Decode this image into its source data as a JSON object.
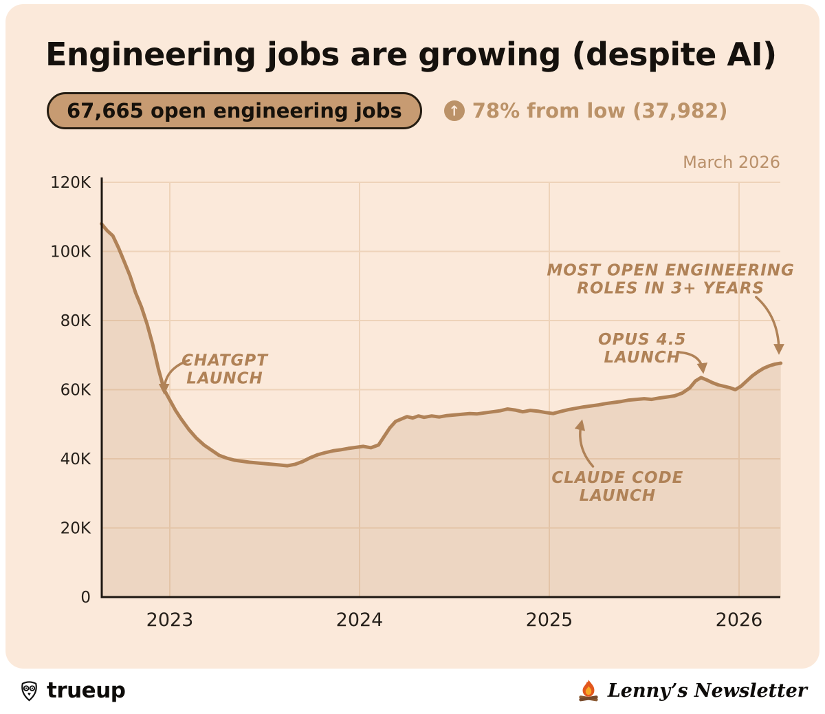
{
  "header": {
    "title": "Engineering jobs are growing (despite AI)",
    "badge": "67,665 open engineering jobs",
    "stat": "78% from low (37,982)"
  },
  "icons": {
    "up_arrow": "↑"
  },
  "footer": {
    "left_brand": "trueup",
    "right_brand": "Lenny’s Newsletter"
  },
  "colors": {
    "card_bg": "#fbe9da",
    "title_text": "#15110d",
    "pill_bg": "#c79b72",
    "pill_border": "#251d12",
    "stat_text": "#bb9268",
    "line": "#b08257",
    "area_fill": "rgba(176,129,86,0.18)",
    "grid": "#eed3b9",
    "axis": "#1d1711",
    "tick_text": "#26201a",
    "annotation": "#b08257",
    "muted_label": "#b9906a"
  },
  "chart_data": {
    "type": "area",
    "title": "Engineering jobs are growing (despite AI)",
    "series_name": "Open engineering jobs",
    "unit": "thousands of jobs",
    "latest_value": 67665,
    "low_value": 37982,
    "end_label": "March 2026",
    "xlim": [
      2022.64,
      2026.25
    ],
    "ylim": [
      0,
      120
    ],
    "y_ticks": [
      0,
      20,
      40,
      60,
      80,
      100,
      120
    ],
    "y_tick_labels": [
      "0",
      "20K",
      "40K",
      "60K",
      "80K",
      "100K",
      "120K"
    ],
    "x_ticks": [
      2023,
      2024,
      2025,
      2026
    ],
    "x_tick_labels": [
      "2023",
      "2024",
      "2025",
      "2026"
    ],
    "x_years": [
      2022.64,
      2022.67,
      2022.7,
      2022.73,
      2022.76,
      2022.79,
      2022.82,
      2022.85,
      2022.88,
      2022.91,
      2022.94,
      2022.97,
      2023.0,
      2023.03,
      2023.06,
      2023.1,
      2023.14,
      2023.18,
      2023.22,
      2023.26,
      2023.3,
      2023.34,
      2023.38,
      2023.42,
      2023.46,
      2023.5,
      2023.54,
      2023.58,
      2023.62,
      2023.66,
      2023.7,
      2023.74,
      2023.78,
      2023.82,
      2023.86,
      2023.9,
      2023.94,
      2023.98,
      2024.02,
      2024.06,
      2024.1,
      2024.13,
      2024.16,
      2024.19,
      2024.22,
      2024.25,
      2024.28,
      2024.31,
      2024.34,
      2024.38,
      2024.42,
      2024.46,
      2024.5,
      2024.54,
      2024.58,
      2024.62,
      2024.66,
      2024.7,
      2024.74,
      2024.78,
      2024.82,
      2024.86,
      2024.9,
      2024.94,
      2024.98,
      2025.02,
      2025.06,
      2025.1,
      2025.14,
      2025.18,
      2025.22,
      2025.26,
      2025.3,
      2025.34,
      2025.38,
      2025.42,
      2025.46,
      2025.5,
      2025.54,
      2025.58,
      2025.62,
      2025.66,
      2025.7,
      2025.74,
      2025.77,
      2025.8,
      2025.83,
      2025.86,
      2025.89,
      2025.92,
      2025.95,
      2025.98,
      2026.01,
      2026.04,
      2026.07,
      2026.1,
      2026.13,
      2026.16,
      2026.19,
      2026.22
    ],
    "y_thousands": [
      108,
      106,
      104.5,
      101,
      97,
      93,
      88,
      84,
      79,
      73,
      66,
      60,
      57,
      54,
      51.5,
      48.5,
      46,
      44,
      42.5,
      41,
      40.2,
      39.6,
      39.3,
      39.0,
      38.8,
      38.6,
      38.4,
      38.2,
      37.982,
      38.4,
      39.2,
      40.3,
      41.2,
      41.8,
      42.3,
      42.6,
      43.0,
      43.3,
      43.6,
      43.2,
      44.0,
      46.5,
      49.0,
      50.8,
      51.5,
      52.2,
      51.8,
      52.4,
      52.0,
      52.4,
      52.1,
      52.5,
      52.7,
      52.9,
      53.1,
      53.0,
      53.3,
      53.6,
      53.9,
      54.4,
      54.1,
      53.6,
      54.0,
      53.8,
      53.4,
      53.1,
      53.7,
      54.2,
      54.6,
      55.0,
      55.3,
      55.6,
      56.0,
      56.3,
      56.6,
      57.0,
      57.2,
      57.4,
      57.2,
      57.6,
      57.9,
      58.2,
      59.0,
      60.5,
      62.5,
      63.5,
      62.8,
      62.0,
      61.4,
      61.0,
      60.6,
      60.0,
      61.0,
      62.5,
      64.0,
      65.2,
      66.2,
      66.9,
      67.4,
      67.665
    ],
    "annotations": [
      {
        "text": "CHATGPT\nLAUNCH",
        "x": 2023.29,
        "y": 66,
        "arrow": {
          "from": [
            2023.1,
            68.5
          ],
          "ctrl": [
            2022.97,
            66.0
          ],
          "tip": [
            2022.97,
            59.5
          ]
        }
      },
      {
        "text": "CLAUDE CODE\nLAUNCH",
        "x": 2025.36,
        "y": 32,
        "arrow": {
          "from": [
            2025.23,
            37.8
          ],
          "ctrl": [
            2025.14,
            43.4
          ],
          "tip": [
            2025.17,
            50.5
          ]
        }
      },
      {
        "text": "OPUS 4.5\nLAUNCH",
        "x": 2025.49,
        "y": 72,
        "arrow": {
          "from": [
            2025.69,
            70.8
          ],
          "ctrl": [
            2025.8,
            70.2
          ],
          "tip": [
            2025.81,
            65.5
          ]
        }
      },
      {
        "text": "MOST OPEN ENGINEERING\nROLES IN 3+ YEARS",
        "x": 2025.64,
        "y": 92,
        "arrow": {
          "from": [
            2026.09,
            86.8
          ],
          "ctrl": [
            2026.21,
            81.0
          ],
          "tip": [
            2026.21,
            71.0
          ]
        }
      }
    ],
    "grid": true,
    "legend": false
  }
}
